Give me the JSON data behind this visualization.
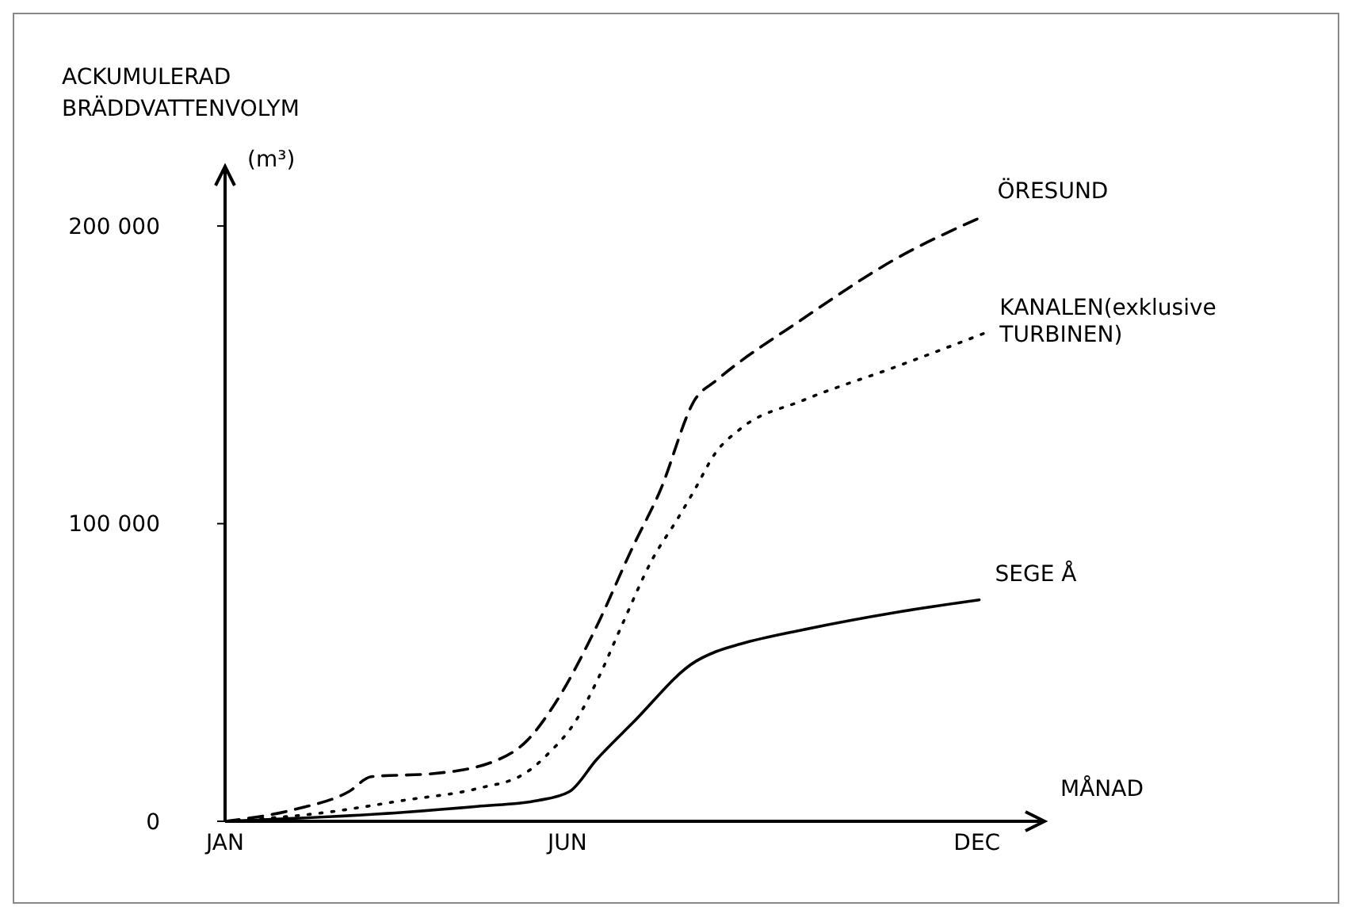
{
  "chart_data": {
    "type": "line",
    "ylabel": "ACKUMULERAD BRÄDDVATTENVOLYM (m³)",
    "xlabel": "MÅNAD",
    "xlim": [
      "--01-01",
      "--12-31"
    ],
    "xticks": [
      {
        "value": "--01-01",
        "label": "JAN"
      },
      {
        "value": "--06-02",
        "label": "JUN"
      },
      {
        "value": "--12-01",
        "label": "DEC"
      }
    ],
    "ylim": [
      0,
      220000
    ],
    "yticks": [
      {
        "value": 0,
        "label": "0"
      },
      {
        "value": 100000,
        "label": "100 000"
      },
      {
        "value": 200000,
        "label": "200 000"
      }
    ],
    "grid": false,
    "legend": false,
    "marker": "none",
    "series": [
      {
        "name": "ÖRESUND",
        "color": "#000000",
        "line_style": "dashed",
        "x": [
          "--01-01",
          "--02-01",
          "--02-25",
          "--03-07",
          "--04-03",
          "--04-30",
          "--05-15",
          "--05-27",
          "--06-15",
          "--07-01",
          "--07-13",
          "--07-29",
          "--08-07",
          "--09-15",
          "--10-26",
          "--12-03"
        ],
        "values": [
          0,
          4000,
          10000,
          15000,
          16000,
          20000,
          27000,
          38900,
          65400,
          92000,
          110600,
          142000,
          148000,
          169000,
          189000,
          203000
        ]
      },
      {
        "name": "KANALEN(exklusive TURBINEN)",
        "color": "#000000",
        "line_style": "dotted",
        "x": [
          "--01-01",
          "--02-15",
          "--03-21",
          "--04-23",
          "--05-14",
          "--05-24",
          "--06-06",
          "--06-16",
          "--06-26",
          "--07-10",
          "--07-21",
          "--07-28",
          "--08-07",
          "--08-18",
          "--09-15",
          "--10-26",
          "--12-04"
        ],
        "values": [
          0,
          3000,
          7000,
          11000,
          16000,
          22300,
          34000,
          48400,
          65400,
          88300,
          101600,
          110600,
          123900,
          131900,
          141500,
          152700,
          163900
        ]
      },
      {
        "name": "SEGE Å",
        "color": "#000000",
        "line_style": "solid",
        "x": [
          "--01-01",
          "--03-21",
          "--04-23",
          "--05-20",
          "--06-03",
          "--06-15",
          "--07-01",
          "--07-29",
          "--08-07",
          "--08-18",
          "--09-15",
          "--10-26",
          "--12-02"
        ],
        "values": [
          0,
          3000,
          5000,
          7000,
          10000,
          20700,
          33000,
          53700,
          57000,
          59600,
          64400,
          70200,
          74400
        ]
      }
    ]
  }
}
